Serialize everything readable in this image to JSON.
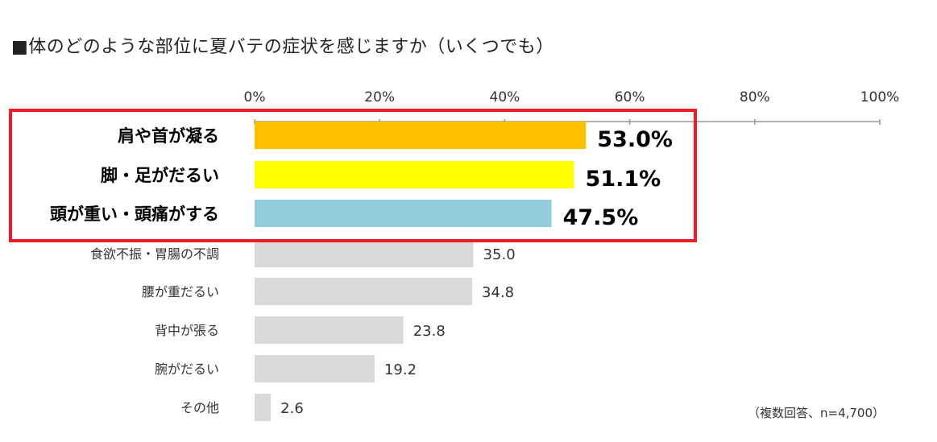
{
  "title": "■体のどのような部位に夏バテの症状を感じますか（いくつでも）",
  "note": "（複数回答、n=4,700）",
  "colors": {
    "highlight_box": "#ee1c25",
    "axis": "#999999",
    "gray_bar": "#d9d9d9"
  },
  "chart_data": {
    "type": "bar",
    "orientation": "horizontal",
    "xlim": [
      0,
      100
    ],
    "x_ticks": [
      "0%",
      "20%",
      "40%",
      "60%",
      "80%",
      "100%"
    ],
    "x_tick_values": [
      0,
      20,
      40,
      60,
      80,
      100
    ],
    "categories": [
      "肩や首が凝る",
      "脚・足がだるい",
      "頭が重い・頭痛がする",
      "食欲不振・胃腸の不調",
      "腰が重だるい",
      "背中が張る",
      "腕がだるい",
      "その他"
    ],
    "values": [
      53.0,
      51.1,
      47.5,
      35.0,
      34.8,
      23.8,
      19.2,
      2.6
    ],
    "value_labels": [
      "53.0%",
      "51.1%",
      "47.5%",
      "35.0",
      "34.8",
      "23.8",
      "19.2",
      "2.6"
    ],
    "bar_colors": [
      "#ffc000",
      "#ffff00",
      "#92cddc",
      "#d9d9d9",
      "#d9d9d9",
      "#d9d9d9",
      "#d9d9d9",
      "#d9d9d9"
    ],
    "highlighted_top": 3
  }
}
